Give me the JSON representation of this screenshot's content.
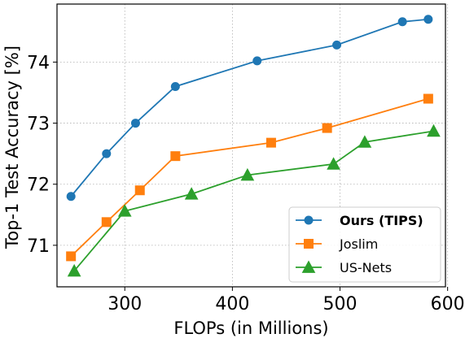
{
  "chart_data": {
    "type": "line",
    "xlabel": "FLOPs (in Millions)",
    "ylabel": "Top-1 Test Accuracy [%]",
    "xlim": [
      237,
      598
    ],
    "ylim": [
      70.32,
      74.95
    ],
    "xticks": [
      300,
      400,
      500,
      600
    ],
    "yticks": [
      71,
      72,
      73,
      74
    ],
    "grid": true,
    "legend_position": "lower-right",
    "series": [
      {
        "name": "Ours (TIPS)",
        "color": "#1f77b4",
        "marker": "circle",
        "bold_label": true,
        "x": [
          250,
          283,
          310,
          347,
          423,
          497,
          558,
          582
        ],
        "y": [
          71.8,
          72.5,
          73.0,
          73.6,
          74.02,
          74.28,
          74.66,
          74.7
        ]
      },
      {
        "name": "Joslim",
        "color": "#ff7f0e",
        "marker": "square",
        "bold_label": false,
        "x": [
          250,
          283,
          314,
          347,
          436,
          488,
          582
        ],
        "y": [
          70.82,
          71.38,
          71.9,
          72.46,
          72.68,
          72.92,
          73.4
        ]
      },
      {
        "name": "US-Nets",
        "color": "#2ca02c",
        "marker": "triangle",
        "bold_label": false,
        "x": [
          253,
          300,
          362,
          414,
          494,
          523,
          587
        ],
        "y": [
          70.58,
          71.56,
          71.84,
          72.15,
          72.33,
          72.69,
          72.87
        ]
      }
    ]
  }
}
